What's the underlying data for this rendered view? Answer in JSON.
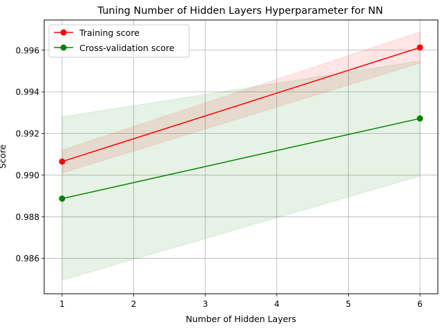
{
  "chart_data": {
    "type": "line",
    "title": "Tuning Number of Hidden Layers Hyperparameter for NN",
    "xlabel": "Number of Hidden Layers",
    "ylabel": "Score",
    "xlim": [
      0.75,
      6.25
    ],
    "ylim": [
      0.9843,
      0.99745
    ],
    "x_ticks": [
      1,
      2,
      3,
      4,
      5,
      6
    ],
    "y_ticks": [
      0.986,
      0.988,
      0.99,
      0.992,
      0.994,
      0.996
    ],
    "y_tick_labels": [
      "0.986",
      "0.988",
      "0.990",
      "0.992",
      "0.994",
      "0.996"
    ],
    "grid": true,
    "legend_position": "top-left",
    "series": [
      {
        "name": "Training score",
        "color": "#ff0000",
        "x": [
          1,
          6
        ],
        "values": [
          0.99065,
          0.99613
        ],
        "band_lower": [
          0.9901,
          0.99538
        ],
        "band_upper": [
          0.9912,
          0.99688
        ]
      },
      {
        "name": "Cross-validation score",
        "color": "#008000",
        "x": [
          1,
          6
        ],
        "values": [
          0.98887,
          0.99272
        ],
        "band_lower": [
          0.98495,
          0.98995
        ],
        "band_upper": [
          0.9928,
          0.99549
        ]
      }
    ]
  }
}
